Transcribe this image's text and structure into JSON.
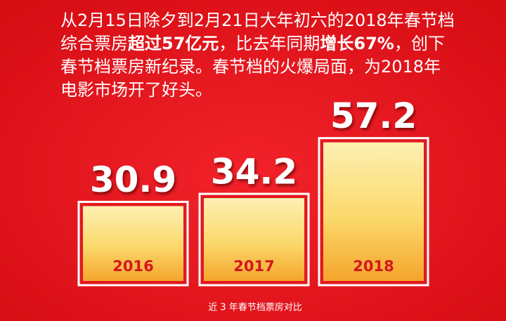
{
  "chart_data": {
    "type": "bar",
    "description": [
      [
        {
          "text": "从2月15日除夕到2月21日大年初六的2018年春节档",
          "bold": false
        }
      ],
      [
        {
          "text": "综合票房",
          "bold": false
        },
        {
          "text": "超过57亿元",
          "bold": true
        },
        {
          "text": "，比去年同期",
          "bold": false
        },
        {
          "text": "增长67%",
          "bold": true
        },
        {
          "text": "，创下",
          "bold": false
        }
      ],
      [
        {
          "text": "春节档票房新纪录。春节档的火爆局面，为2018年",
          "bold": false
        }
      ],
      [
        {
          "text": "电影市场开了好头。",
          "bold": false
        }
      ]
    ],
    "title": "近 3 年春节档票房对比",
    "categories": [
      "2016",
      "2017",
      "2018"
    ],
    "values": [
      30.9,
      34.2,
      57.2
    ],
    "color": "#fbd86a"
  }
}
